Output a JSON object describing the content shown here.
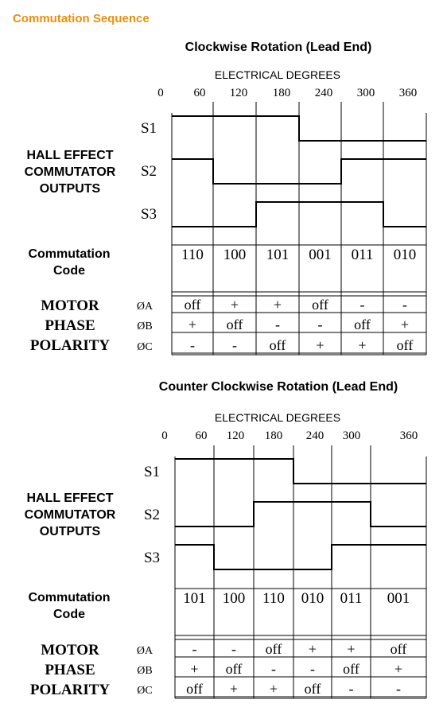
{
  "header": "Commutation Sequence",
  "colors": {
    "header": "#e8900c",
    "line": "#000000",
    "background": "#ffffff"
  },
  "side_labels": {
    "hall": [
      "HALL EFFECT",
      "COMMUTATOR",
      "OUTPUTS"
    ],
    "code": [
      "Commutation",
      "Code"
    ],
    "motor": [
      "MOTOR",
      "PHASE",
      "POLARITY"
    ]
  },
  "cw": {
    "title": "Clockwise Rotation (Lead End)",
    "degrees_label": "ELECTRICAL DEGREES",
    "ticks": [
      "0",
      "60",
      "120",
      "180",
      "240",
      "300",
      "360"
    ],
    "signals": [
      {
        "name": "S1",
        "levels": [
          1,
          1,
          1,
          0,
          0,
          0
        ]
      },
      {
        "name": "S2",
        "levels": [
          1,
          0,
          0,
          0,
          1,
          1
        ]
      },
      {
        "name": "S3",
        "levels": [
          0,
          0,
          1,
          1,
          1,
          0
        ]
      }
    ],
    "codes": [
      "110",
      "100",
      "101",
      "001",
      "011",
      "010"
    ],
    "phases": [
      {
        "label": "ØA",
        "values": [
          "off",
          "+",
          "+",
          "off",
          "-",
          "-"
        ]
      },
      {
        "label": "ØB",
        "values": [
          "+",
          "off",
          "-",
          "-",
          "off",
          "+"
        ]
      },
      {
        "label": "ØC",
        "values": [
          "-",
          "-",
          "off",
          "+",
          "+",
          "off"
        ]
      }
    ]
  },
  "ccw": {
    "title": "Counter Clockwise Rotation (Lead End)",
    "degrees_label": "ELECTRICAL DEGREES",
    "ticks": [
      "0",
      "60",
      "120",
      "180",
      "240",
      "300",
      "360"
    ],
    "signals": [
      {
        "name": "S1",
        "levels": [
          1,
          1,
          1,
          0,
          0,
          0
        ]
      },
      {
        "name": "S2",
        "levels": [
          0,
          0,
          1,
          1,
          1,
          0
        ]
      },
      {
        "name": "S3",
        "levels": [
          1,
          0,
          0,
          0,
          1,
          1
        ]
      }
    ],
    "codes": [
      "101",
      "100",
      "110",
      "010",
      "011",
      "001"
    ],
    "phases": [
      {
        "label": "ØA",
        "values": [
          "-",
          "-",
          "off",
          "+",
          "+",
          "off"
        ]
      },
      {
        "label": "ØB",
        "values": [
          "+",
          "off",
          "-",
          "-",
          "off",
          "+"
        ]
      },
      {
        "label": "ØC",
        "values": [
          "off",
          "+",
          "+",
          "off",
          "-",
          "-"
        ]
      }
    ]
  }
}
